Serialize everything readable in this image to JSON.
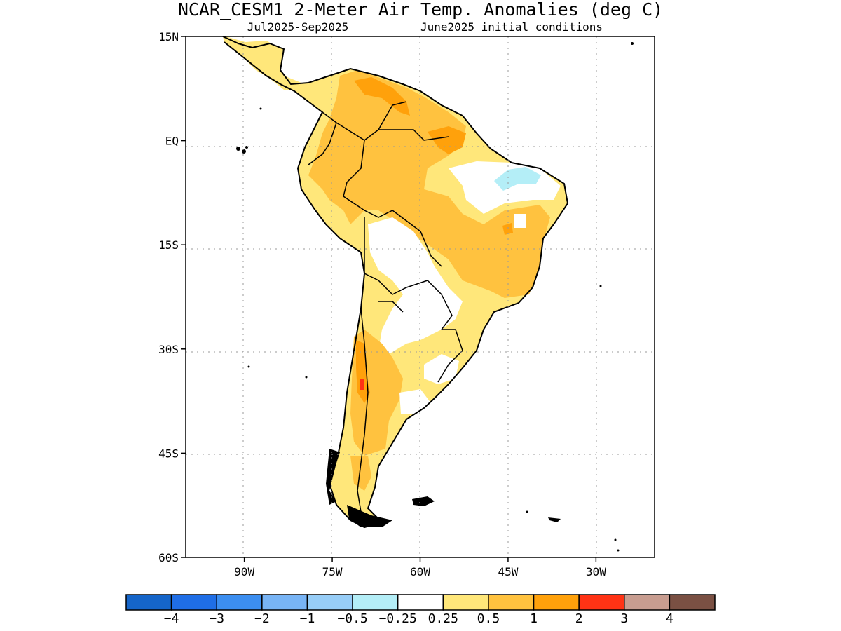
{
  "title": "NCAR_CESM1 2-Meter Air Temp. Anomalies (deg C)",
  "subtitle_left": "Jul2025-Sep2025",
  "subtitle_right": "June2025 initial conditions",
  "map": {
    "lat_range": [
      -60,
      15
    ],
    "lon_range": [
      -100,
      -20
    ],
    "lat_ticks": [
      {
        "value": 15,
        "label": "15N"
      },
      {
        "value": 0,
        "label": "EQ"
      },
      {
        "value": -15,
        "label": "15S"
      },
      {
        "value": -30,
        "label": "30S"
      },
      {
        "value": -45,
        "label": "45S"
      },
      {
        "value": -60,
        "label": "60S"
      }
    ],
    "lon_ticks": [
      {
        "value": -90,
        "label": "90W"
      },
      {
        "value": -75,
        "label": "75W"
      },
      {
        "value": -60,
        "label": "60W"
      },
      {
        "value": -45,
        "label": "45W"
      },
      {
        "value": -30,
        "label": "30W"
      }
    ],
    "grid": "dotted"
  },
  "colorbar": {
    "colors": [
      "#1565c9",
      "#1f6ee6",
      "#3c8ef0",
      "#78b4f5",
      "#97cdf7",
      "#b4eef7",
      "#ffffff",
      "#ffe77a",
      "#ffc23f",
      "#ffa10b",
      "#ff3315",
      "#c89d90",
      "#7a5043"
    ],
    "labels": [
      "-4",
      "-3",
      "-2",
      "-1",
      "-0.5",
      "-0.25",
      "0.25",
      "0.5",
      "1",
      "2",
      "3",
      "4"
    ]
  }
}
